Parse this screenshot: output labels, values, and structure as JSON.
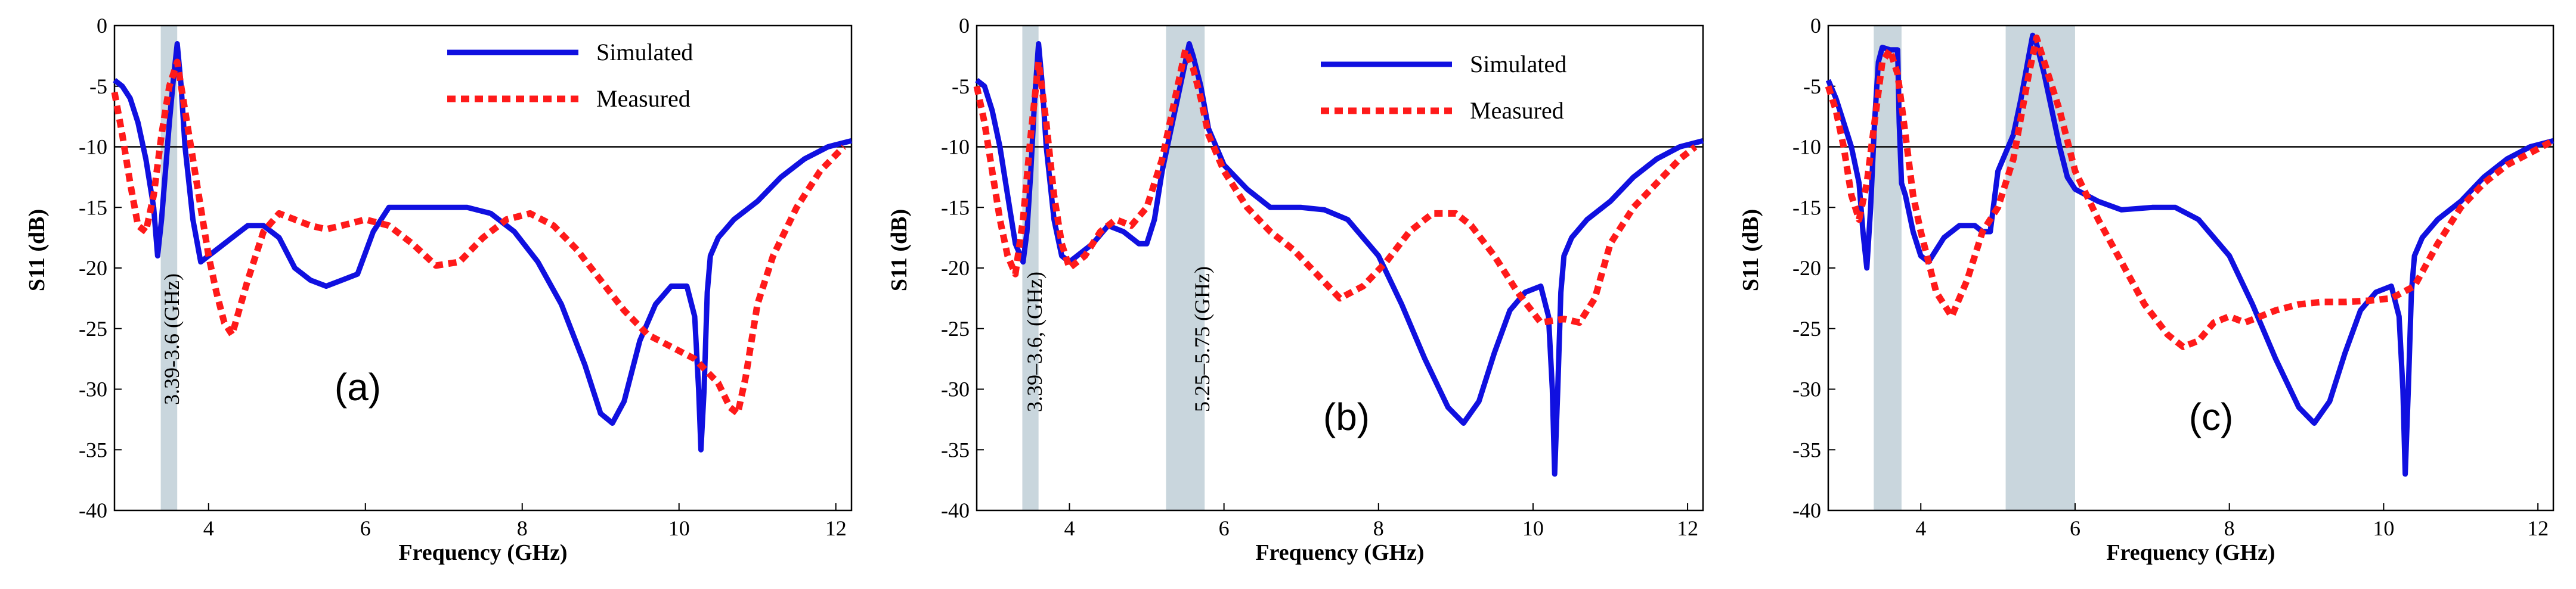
{
  "figure": "S11 versus frequency for three antenna configurations",
  "colors": {
    "simulated": "#1010e0",
    "measured": "#ff1a1a",
    "band": "#c9d6dd",
    "axis": "#000000",
    "ref_line": "#000000"
  },
  "chart_data": [
    {
      "type": "line",
      "panel_label": "(a)",
      "xlabel": "Frequency (GHz)",
      "ylabel": "S11 (dB)",
      "xlim": [
        2.8,
        12.2
      ],
      "ylim": [
        -40,
        0
      ],
      "xticks": [
        4,
        6,
        8,
        10,
        12
      ],
      "yticks": [
        0,
        -5,
        -10,
        -15,
        -20,
        -25,
        -30,
        -35,
        -40
      ],
      "reference_line": -10,
      "legend": {
        "placement": "top-center",
        "entries": [
          "Simulated",
          "Measured"
        ]
      },
      "bands": [
        {
          "x0": 3.39,
          "x1": 3.6,
          "label": "3.39-3.6 (GHz)"
        }
      ],
      "series": [
        {
          "name": "Simulated",
          "style": "solid",
          "x": [
            2.8,
            2.9,
            3.0,
            3.1,
            3.2,
            3.3,
            3.35,
            3.4,
            3.45,
            3.5,
            3.55,
            3.6,
            3.65,
            3.7,
            3.8,
            3.9,
            4.0,
            4.1,
            4.3,
            4.5,
            4.7,
            4.9,
            5.1,
            5.3,
            5.5,
            5.7,
            5.9,
            6.1,
            6.3,
            6.5,
            6.7,
            7.0,
            7.3,
            7.6,
            7.9,
            8.2,
            8.5,
            8.8,
            9.0,
            9.15,
            9.3,
            9.5,
            9.7,
            9.9,
            10.1,
            10.2,
            10.25,
            10.28,
            10.32,
            10.36,
            10.4,
            10.5,
            10.7,
            11.0,
            11.3,
            11.6,
            11.9,
            12.2
          ],
          "y": [
            -4.5,
            -5,
            -6,
            -8,
            -11,
            -15,
            -19,
            -16,
            -12,
            -8,
            -4.5,
            -1.5,
            -5,
            -10,
            -16,
            -19.5,
            -19,
            -18.5,
            -17.5,
            -16.5,
            -16.5,
            -17.5,
            -20,
            -21,
            -21.5,
            -21,
            -20.5,
            -17,
            -15,
            -15,
            -15,
            -15,
            -15,
            -15.5,
            -17,
            -19.5,
            -23,
            -28,
            -32,
            -32.8,
            -31,
            -26,
            -23,
            -21.5,
            -21.5,
            -24,
            -30,
            -35,
            -30,
            -22,
            -19,
            -17.5,
            -16,
            -14.5,
            -12.5,
            -11,
            -10,
            -9.5
          ]
        },
        {
          "name": "Measured",
          "style": "dashed",
          "x": [
            2.8,
            2.9,
            3.0,
            3.1,
            3.2,
            3.3,
            3.4,
            3.5,
            3.6,
            3.7,
            3.8,
            3.9,
            4.0,
            4.1,
            4.2,
            4.3,
            4.5,
            4.7,
            4.9,
            5.1,
            5.3,
            5.5,
            5.7,
            6.0,
            6.3,
            6.6,
            6.9,
            7.2,
            7.5,
            7.8,
            8.1,
            8.4,
            8.7,
            9.0,
            9.3,
            9.6,
            9.9,
            10.2,
            10.5,
            10.65,
            10.75,
            10.85,
            11.0,
            11.2,
            11.5,
            11.8,
            12.1
          ],
          "y": [
            -5.5,
            -9,
            -13,
            -16.5,
            -17,
            -14,
            -9,
            -5,
            -3,
            -7,
            -11,
            -15,
            -19,
            -22,
            -24.5,
            -25.5,
            -21,
            -17,
            -15.5,
            -16,
            -16.5,
            -16.8,
            -16.5,
            -16,
            -16.5,
            -18,
            -19.8,
            -19.5,
            -17.5,
            -16,
            -15.5,
            -16.5,
            -18.5,
            -21,
            -23.5,
            -25.5,
            -26.5,
            -27.5,
            -29.5,
            -31.5,
            -32,
            -29,
            -23,
            -19,
            -15,
            -12,
            -10
          ]
        }
      ]
    },
    {
      "type": "line",
      "panel_label": "(b)",
      "xlabel": "Frequency (GHz)",
      "ylabel": "S11 (dB)",
      "xlim": [
        2.8,
        12.2
      ],
      "ylim": [
        -40,
        0
      ],
      "xticks": [
        4,
        6,
        8,
        10,
        12
      ],
      "yticks": [
        0,
        -5,
        -10,
        -15,
        -20,
        -25,
        -30,
        -35,
        -40
      ],
      "reference_line": -10,
      "legend": {
        "placement": "top-right",
        "entries": [
          "Simulated",
          "Measured"
        ]
      },
      "bands": [
        {
          "x0": 3.39,
          "x1": 3.6,
          "label": "3.39–3.6, (GHz)"
        },
        {
          "x0": 5.25,
          "x1": 5.75,
          "label": "5.25–5.75 (GHz)"
        }
      ],
      "series": [
        {
          "name": "Simulated",
          "style": "solid",
          "x": [
            2.8,
            2.9,
            3.0,
            3.1,
            3.2,
            3.3,
            3.4,
            3.45,
            3.5,
            3.55,
            3.6,
            3.65,
            3.7,
            3.8,
            3.9,
            4.0,
            4.1,
            4.3,
            4.5,
            4.7,
            4.9,
            5.0,
            5.1,
            5.2,
            5.3,
            5.4,
            5.5,
            5.55,
            5.6,
            5.7,
            5.8,
            6.0,
            6.3,
            6.6,
            7.0,
            7.3,
            7.6,
            8.0,
            8.3,
            8.6,
            8.9,
            9.1,
            9.3,
            9.5,
            9.7,
            9.9,
            10.1,
            10.2,
            10.25,
            10.28,
            10.32,
            10.36,
            10.4,
            10.5,
            10.7,
            11.0,
            11.3,
            11.6,
            11.9,
            12.2
          ],
          "y": [
            -4.5,
            -5,
            -7,
            -10,
            -14,
            -18,
            -19.5,
            -17,
            -12,
            -6,
            -1.5,
            -5,
            -10,
            -16,
            -19,
            -19.5,
            -19,
            -18,
            -16.5,
            -17,
            -18,
            -18,
            -16,
            -12,
            -9,
            -6,
            -3,
            -1.5,
            -2.5,
            -5,
            -8.5,
            -11.5,
            -13.5,
            -15,
            -15,
            -15.2,
            -16,
            -19,
            -23,
            -27.5,
            -31.5,
            -32.8,
            -31,
            -27,
            -23.5,
            -22,
            -21.5,
            -24,
            -30,
            -37,
            -30,
            -22,
            -19,
            -17.5,
            -16,
            -14.5,
            -12.5,
            -11,
            -10,
            -9.5
          ]
        },
        {
          "name": "Measured",
          "style": "dashed",
          "x": [
            2.8,
            2.9,
            3.0,
            3.1,
            3.2,
            3.3,
            3.4,
            3.5,
            3.6,
            3.7,
            3.8,
            3.9,
            4.0,
            4.2,
            4.4,
            4.6,
            4.8,
            5.0,
            5.2,
            5.4,
            5.5,
            5.6,
            5.7,
            5.8,
            6.0,
            6.3,
            6.6,
            6.9,
            7.2,
            7.5,
            7.8,
            8.1,
            8.4,
            8.7,
            9.0,
            9.2,
            9.5,
            9.8,
            10.1,
            10.4,
            10.6,
            10.8,
            11.0,
            11.3,
            11.6,
            11.9,
            12.1
          ],
          "y": [
            -5,
            -8,
            -12,
            -16,
            -19,
            -20.5,
            -16,
            -9,
            -3,
            -8,
            -14,
            -18,
            -20,
            -19,
            -17,
            -16,
            -16.5,
            -15,
            -11,
            -5,
            -2,
            -3.5,
            -6,
            -9,
            -12,
            -15,
            -17,
            -18.5,
            -20.5,
            -22.5,
            -21.5,
            -19.5,
            -17,
            -15.5,
            -15.5,
            -16.5,
            -19,
            -22,
            -24.5,
            -24.2,
            -24.5,
            -22.5,
            -18,
            -15,
            -13,
            -11,
            -10
          ]
        }
      ]
    },
    {
      "type": "line",
      "panel_label": "(c)",
      "xlabel": "Frequency (GHz)",
      "ylabel": "S11 (dB)",
      "xlim": [
        2.8,
        12.2
      ],
      "ylim": [
        -40,
        0
      ],
      "xticks": [
        4,
        6,
        8,
        10,
        12
      ],
      "yticks": [
        0,
        -5,
        -10,
        -15,
        -20,
        -25,
        -30,
        -35,
        -40
      ],
      "reference_line": -10,
      "legend": {
        "placement": "none",
        "entries": []
      },
      "bands": [
        {
          "x0": 3.39,
          "x1": 3.75,
          "label": ""
        },
        {
          "x0": 5.1,
          "x1": 6.0,
          "label": ""
        }
      ],
      "series": [
        {
          "name": "Simulated",
          "style": "solid",
          "x": [
            2.8,
            2.9,
            3.0,
            3.1,
            3.2,
            3.25,
            3.3,
            3.35,
            3.4,
            3.45,
            3.5,
            3.6,
            3.7,
            3.72,
            3.75,
            3.8,
            3.9,
            4.0,
            4.1,
            4.3,
            4.5,
            4.7,
            4.8,
            4.9,
            5.0,
            5.2,
            5.3,
            5.4,
            5.45,
            5.5,
            5.6,
            5.7,
            5.8,
            5.9,
            6.0,
            6.3,
            6.6,
            7.0,
            7.3,
            7.6,
            8.0,
            8.3,
            8.6,
            8.9,
            9.1,
            9.3,
            9.5,
            9.7,
            9.9,
            10.1,
            10.2,
            10.25,
            10.28,
            10.32,
            10.36,
            10.4,
            10.5,
            10.7,
            11.0,
            11.3,
            11.6,
            11.9,
            12.2
          ],
          "y": [
            -4.5,
            -6,
            -8,
            -10,
            -13,
            -17,
            -20,
            -15,
            -8,
            -3,
            -1.8,
            -2,
            -2,
            -8,
            -13,
            -14,
            -17,
            -19,
            -19.5,
            -17.5,
            -16.5,
            -16.5,
            -17,
            -17,
            -12,
            -9,
            -6,
            -2.5,
            -0.8,
            -1.5,
            -4,
            -7,
            -10,
            -12.5,
            -13.5,
            -14.5,
            -15.2,
            -15,
            -15,
            -16,
            -19,
            -23,
            -27.5,
            -31.5,
            -32.8,
            -31,
            -27,
            -23.5,
            -22,
            -21.5,
            -24,
            -30,
            -37,
            -30,
            -22,
            -19,
            -17.5,
            -16,
            -14.5,
            -12.5,
            -11,
            -10,
            -9.5
          ]
        },
        {
          "name": "Measured",
          "style": "dashed",
          "x": [
            2.8,
            2.9,
            3.0,
            3.1,
            3.2,
            3.3,
            3.4,
            3.5,
            3.6,
            3.7,
            3.8,
            3.9,
            4.0,
            4.2,
            4.4,
            4.6,
            4.8,
            5.0,
            5.2,
            5.4,
            5.5,
            5.6,
            5.8,
            6.0,
            6.3,
            6.6,
            6.9,
            7.2,
            7.4,
            7.6,
            7.8,
            8.0,
            8.2,
            8.4,
            8.6,
            8.9,
            9.2,
            9.5,
            9.8,
            10.1,
            10.4,
            10.7,
            11.0,
            11.3,
            11.6,
            11.9,
            12.2
          ],
          "y": [
            -5,
            -7,
            -10,
            -14,
            -16,
            -13,
            -8,
            -3,
            -2,
            -4,
            -9,
            -14,
            -17,
            -22,
            -24,
            -21,
            -17,
            -15,
            -11,
            -4,
            -1,
            -3,
            -7,
            -12,
            -16,
            -19.5,
            -23,
            -25.5,
            -26.5,
            -26,
            -24.5,
            -24,
            -24.5,
            -24,
            -23.5,
            -23,
            -22.8,
            -22.8,
            -22.7,
            -22.5,
            -21.5,
            -18,
            -15,
            -13,
            -11.5,
            -10.5,
            -9.5
          ]
        }
      ]
    }
  ]
}
